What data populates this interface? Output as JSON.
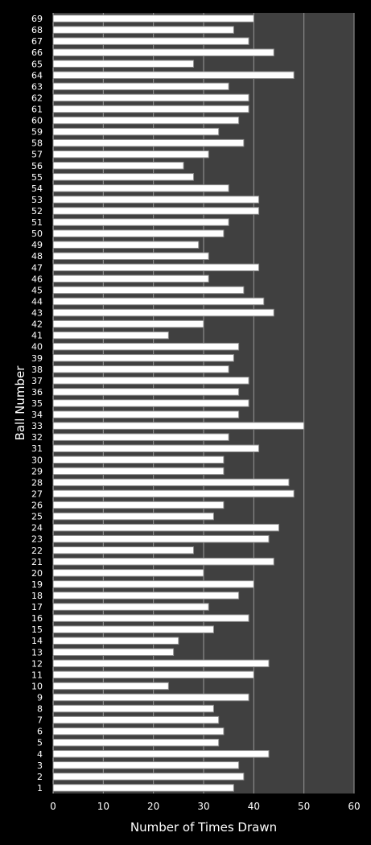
{
  "chart_data": {
    "type": "bar",
    "orientation": "horizontal",
    "title": "",
    "xlabel": "Number of Times Drawn",
    "ylabel": "Ball Number",
    "xlim": [
      0,
      60
    ],
    "xticks": [
      0,
      10,
      20,
      30,
      40,
      50,
      60
    ],
    "grid": true,
    "legend": "none",
    "categories": [
      "1",
      "2",
      "3",
      "4",
      "5",
      "6",
      "7",
      "8",
      "9",
      "10",
      "11",
      "12",
      "13",
      "14",
      "15",
      "16",
      "17",
      "18",
      "19",
      "20",
      "21",
      "22",
      "23",
      "24",
      "25",
      "26",
      "27",
      "28",
      "29",
      "30",
      "31",
      "32",
      "33",
      "34",
      "35",
      "36",
      "37",
      "38",
      "39",
      "40",
      "41",
      "42",
      "43",
      "44",
      "45",
      "46",
      "47",
      "48",
      "49",
      "50",
      "51",
      "52",
      "53",
      "54",
      "55",
      "56",
      "57",
      "58",
      "59",
      "60",
      "61",
      "62",
      "63",
      "64",
      "65",
      "66",
      "67",
      "68",
      "69"
    ],
    "values": [
      36,
      38,
      37,
      43,
      33,
      34,
      33,
      32,
      39,
      23,
      40,
      43,
      24,
      25,
      32,
      39,
      31,
      37,
      40,
      30,
      44,
      28,
      43,
      45,
      32,
      34,
      48,
      47,
      34,
      34,
      41,
      35,
      50,
      37,
      39,
      37,
      39,
      35,
      36,
      37,
      23,
      30,
      44,
      42,
      38,
      31,
      41,
      31,
      29,
      34,
      35,
      41,
      41,
      35,
      28,
      26,
      31,
      38,
      33,
      37,
      39,
      39,
      35,
      48,
      28,
      44,
      39,
      36,
      40
    ],
    "colors": {
      "background": "#000000",
      "plot_area": "#404040",
      "gridline": "#9a9a9a",
      "bar_fill": "#ffffff",
      "bar_stroke": "#8c8c8c",
      "text": "#ffffff"
    }
  }
}
